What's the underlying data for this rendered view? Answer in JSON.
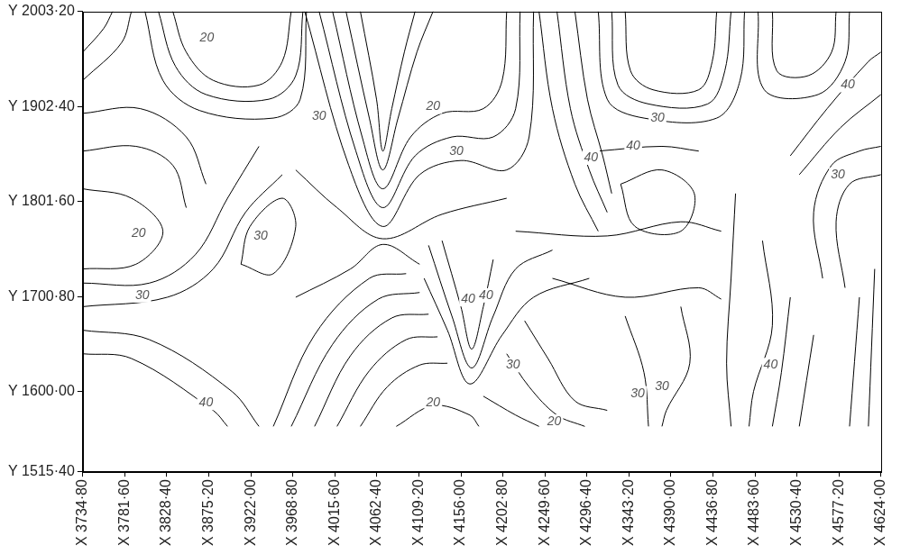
{
  "chart_data": {
    "type": "contour",
    "color": "#000000",
    "grid": false,
    "xlim": [
      3734.8,
      4624.0
    ],
    "ylim": [
      1515.4,
      2003.2
    ],
    "xticks": [
      {
        "value": 3734.8,
        "label": "X 3734·80"
      },
      {
        "value": 3781.6,
        "label": "X 3781·60"
      },
      {
        "value": 3828.4,
        "label": "X 3828·40"
      },
      {
        "value": 3875.2,
        "label": "X 3875·20"
      },
      {
        "value": 3922.0,
        "label": "X 3922·00"
      },
      {
        "value": 3968.8,
        "label": "X 3968·80"
      },
      {
        "value": 4015.6,
        "label": "X 4015·60"
      },
      {
        "value": 4062.4,
        "label": "X 4062·40"
      },
      {
        "value": 4109.2,
        "label": "X 4109·20"
      },
      {
        "value": 4156.0,
        "label": "X 4156·00"
      },
      {
        "value": 4202.8,
        "label": "X 4202·80"
      },
      {
        "value": 4249.6,
        "label": "X 4249·60"
      },
      {
        "value": 4296.4,
        "label": "X 4296·40"
      },
      {
        "value": 4343.2,
        "label": "X 4343·20"
      },
      {
        "value": 4390.0,
        "label": "X 4390·00"
      },
      {
        "value": 4436.8,
        "label": "X 4436·80"
      },
      {
        "value": 4483.6,
        "label": "X 4483·60"
      },
      {
        "value": 4530.4,
        "label": "X 4530·40"
      },
      {
        "value": 4577.2,
        "label": "X 4577·20"
      },
      {
        "value": 4624.0,
        "label": "X 4624·00"
      }
    ],
    "yticks": [
      {
        "value": 1515.4,
        "label": "Y 1515·40"
      },
      {
        "value": 1600.0,
        "label": "Y 1600·00"
      },
      {
        "value": 1700.8,
        "label": "Y 1700·80"
      },
      {
        "value": 1801.6,
        "label": "Y 1801·60"
      },
      {
        "value": 1902.4,
        "label": "Y 1902·40"
      },
      {
        "value": 2003.2,
        "label": "Y 2003·20"
      }
    ],
    "contours": [
      [
        [
          3734.8,
          1960
        ],
        [
          3758,
          1985
        ],
        [
          3768,
          2003.2
        ]
      ],
      [
        [
          3734.8,
          1930
        ],
        [
          3778,
          1970
        ],
        [
          3789,
          2003.2
        ]
      ],
      [
        [
          3835,
          2003.2
        ],
        [
          3850,
          1960
        ],
        [
          3880,
          1930
        ],
        [
          3931,
          1925
        ],
        [
          3957,
          1950
        ],
        [
          3967,
          2003.2
        ]
      ],
      [
        [
          3819,
          2003.2
        ],
        [
          3838,
          1945
        ],
        [
          3872,
          1915
        ],
        [
          3942,
          1910
        ],
        [
          3972,
          1935
        ],
        [
          3980,
          2003.2
        ]
      ],
      [
        [
          3804,
          2003.2
        ],
        [
          3824,
          1930
        ],
        [
          3865,
          1898
        ],
        [
          3947,
          1890
        ],
        [
          3977,
          1910
        ],
        [
          3984,
          2003.2
        ]
      ],
      [
        [
          3734.8,
          1895
        ],
        [
          3799,
          1900
        ],
        [
          3850,
          1870
        ],
        [
          3872,
          1820
        ]
      ],
      [
        [
          3734.8,
          1855
        ],
        [
          3794,
          1860
        ],
        [
          3835,
          1840
        ],
        [
          3850,
          1795
        ]
      ],
      [
        [
          4044,
          2003.2
        ],
        [
          4062,
          1910
        ],
        [
          4069,
          1855
        ],
        [
          4079,
          1900
        ],
        [
          4093,
          1960
        ],
        [
          4105,
          2003.2
        ]
      ],
      [
        [
          4028,
          2003.2
        ],
        [
          4054,
          1890
        ],
        [
          4069,
          1835
        ],
        [
          4086,
          1890
        ],
        [
          4107,
          1960
        ],
        [
          4125,
          2003.2
        ]
      ],
      [
        [
          4013,
          2003.2
        ],
        [
          4046,
          1870
        ],
        [
          4069,
          1815
        ],
        [
          4100,
          1870
        ],
        [
          4135,
          1895
        ],
        [
          4181,
          1900
        ],
        [
          4202,
          1930
        ],
        [
          4207,
          2003.2
        ]
      ],
      [
        [
          3998,
          2003.2
        ],
        [
          4039,
          1855
        ],
        [
          4069,
          1795
        ],
        [
          4105,
          1850
        ],
        [
          4146,
          1870
        ],
        [
          4192,
          1870
        ],
        [
          4217,
          1900
        ],
        [
          4222,
          2003.2
        ]
      ],
      [
        [
          3982,
          2003.2
        ],
        [
          4031,
          1840
        ],
        [
          4069,
          1775
        ],
        [
          4110,
          1830
        ],
        [
          4156,
          1845
        ],
        [
          4207,
          1835
        ],
        [
          4232,
          1870
        ],
        [
          4237,
          2003.2
        ]
      ],
      [
        [
          4339,
          2003.2
        ],
        [
          4345,
          1940
        ],
        [
          4370,
          1920
        ],
        [
          4421,
          1920
        ],
        [
          4436,
          1950
        ],
        [
          4441,
          2003.2
        ]
      ],
      [
        [
          4324,
          2003.2
        ],
        [
          4331,
          1925
        ],
        [
          4365,
          1905
        ],
        [
          4431,
          1905
        ],
        [
          4450,
          1940
        ],
        [
          4457,
          2003.2
        ]
      ],
      [
        [
          4309,
          2003.2
        ],
        [
          4319,
          1910
        ],
        [
          4360,
          1890
        ],
        [
          4441,
          1890
        ],
        [
          4467,
          1930
        ],
        [
          4472,
          2003.2
        ]
      ],
      [
        [
          4243,
          2003.2
        ],
        [
          4258,
          1900
        ],
        [
          4283,
          1820
        ],
        [
          4309,
          1770
        ]
      ],
      [
        [
          4263,
          2003.2
        ],
        [
          4278,
          1900
        ],
        [
          4299,
          1835
        ],
        [
          4319,
          1790
        ]
      ],
      [
        [
          4283,
          2003.2
        ],
        [
          4297,
          1910
        ],
        [
          4314,
          1850
        ],
        [
          4324,
          1810
        ]
      ],
      [
        [
          4309,
          1855
        ],
        [
          4380,
          1860
        ],
        [
          4421,
          1855
        ]
      ],
      [
        [
          4503,
          2003.2
        ],
        [
          4508,
          1940
        ],
        [
          4543,
          1935
        ],
        [
          4569,
          1960
        ],
        [
          4574,
          2003.2
        ]
      ],
      [
        [
          4487,
          2003.2
        ],
        [
          4494,
          1920
        ],
        [
          4554,
          1915
        ],
        [
          4584,
          1950
        ],
        [
          4589,
          2003.2
        ]
      ],
      [
        [
          4523,
          1850
        ],
        [
          4564,
          1900
        ],
        [
          4610,
          1950
        ],
        [
          4624,
          1960
        ]
      ],
      [
        [
          4533,
          1830
        ],
        [
          4579,
          1880
        ],
        [
          4624,
          1915
        ]
      ],
      [
        [
          4559,
          1720
        ],
        [
          4549,
          1790
        ],
        [
          4569,
          1840
        ],
        [
          4600,
          1855
        ],
        [
          4624,
          1860
        ]
      ],
      [
        [
          4584,
          1710
        ],
        [
          4574,
          1780
        ],
        [
          4589,
          1820
        ],
        [
          4624,
          1830
        ]
      ],
      [
        [
          4334,
          1820
        ],
        [
          4380,
          1835
        ],
        [
          4416,
          1810
        ],
        [
          4401,
          1770
        ],
        [
          4350,
          1775
        ],
        [
          4334,
          1820
        ]
      ],
      [
        [
          4217,
          1770
        ],
        [
          4319,
          1765
        ],
        [
          4401,
          1780
        ],
        [
          4446,
          1770
        ]
      ],
      [
        [
          4258,
          1720
        ],
        [
          4339,
          1700
        ],
        [
          4421,
          1710
        ],
        [
          4446,
          1698
        ]
      ],
      [
        [
          3734.8,
          1815
        ],
        [
          3789,
          1805
        ],
        [
          3824,
          1770
        ],
        [
          3794,
          1735
        ],
        [
          3734.8,
          1730
        ]
      ],
      [
        [
          3734.8,
          1715
        ],
        [
          3809,
          1715
        ],
        [
          3860,
          1745
        ],
        [
          3896,
          1805
        ],
        [
          3931,
          1860
        ]
      ],
      [
        [
          3734.8,
          1690
        ],
        [
          3829,
          1700
        ],
        [
          3880,
          1730
        ],
        [
          3916,
          1790
        ],
        [
          3957,
          1830
        ]
      ],
      [
        [
          3911,
          1735
        ],
        [
          3921,
          1775
        ],
        [
          3957,
          1805
        ],
        [
          3972,
          1775
        ],
        [
          3947,
          1725
        ],
        [
          3911,
          1735
        ]
      ],
      [
        [
          3972,
          1835
        ],
        [
          4018,
          1795
        ],
        [
          4069,
          1762
        ],
        [
          4135,
          1788
        ],
        [
          4207,
          1805
        ]
      ],
      [
        [
          3972,
          1700
        ],
        [
          4033,
          1730
        ],
        [
          4069,
          1756
        ],
        [
          4110,
          1735
        ]
      ],
      [
        [
          4135,
          1760
        ],
        [
          4156,
          1690
        ],
        [
          4168,
          1645
        ],
        [
          4181,
          1690
        ],
        [
          4192,
          1740
        ]
      ],
      [
        [
          4120,
          1755
        ],
        [
          4146,
          1680
        ],
        [
          4168,
          1625
        ],
        [
          4192,
          1680
        ],
        [
          4217,
          1730
        ],
        [
          4258,
          1750
        ]
      ],
      [
        [
          4115,
          1720
        ],
        [
          4141,
          1665
        ],
        [
          4166,
          1608
        ],
        [
          4202,
          1660
        ],
        [
          4237,
          1700
        ],
        [
          4299,
          1720
        ]
      ],
      [
        [
          3734.8,
          1665
        ],
        [
          3809,
          1655
        ],
        [
          3901,
          1600
        ],
        [
          3931,
          1563
        ]
      ],
      [
        [
          3734.8,
          1640
        ],
        [
          3789,
          1635
        ],
        [
          3880,
          1580
        ],
        [
          3896,
          1563
        ]
      ],
      [
        [
          3947,
          1563
        ],
        [
          3993,
          1660
        ],
        [
          4054,
          1720
        ],
        [
          4095,
          1725
        ]
      ],
      [
        [
          3967,
          1563
        ],
        [
          4013,
          1650
        ],
        [
          4064,
          1698
        ],
        [
          4110,
          1705
        ]
      ],
      [
        [
          3993,
          1563
        ],
        [
          4033,
          1638
        ],
        [
          4079,
          1678
        ],
        [
          4120,
          1682
        ]
      ],
      [
        [
          4018,
          1563
        ],
        [
          4054,
          1622
        ],
        [
          4095,
          1655
        ],
        [
          4130,
          1658
        ]
      ],
      [
        [
          4044,
          1563
        ],
        [
          4074,
          1605
        ],
        [
          4110,
          1628
        ],
        [
          4141,
          1630
        ]
      ],
      [
        [
          4227,
          1675
        ],
        [
          4253,
          1635
        ],
        [
          4283,
          1590
        ],
        [
          4319,
          1580
        ]
      ],
      [
        [
          4207,
          1640
        ],
        [
          4232,
          1605
        ],
        [
          4263,
          1575
        ],
        [
          4294,
          1563
        ]
      ],
      [
        [
          4181,
          1595
        ],
        [
          4217,
          1575
        ],
        [
          4243,
          1563
        ]
      ],
      [
        [
          4084,
          1563
        ],
        [
          4125,
          1585
        ],
        [
          4166,
          1575
        ],
        [
          4176,
          1563
        ]
      ],
      [
        [
          4339,
          1680
        ],
        [
          4360,
          1620
        ],
        [
          4365,
          1563
        ]
      ],
      [
        [
          4401,
          1690
        ],
        [
          4411,
          1630
        ],
        [
          4385,
          1580
        ],
        [
          4380,
          1563
        ]
      ],
      [
        [
          4462,
          1810
        ],
        [
          4457,
          1720
        ],
        [
          4452,
          1630
        ],
        [
          4457,
          1563
        ]
      ],
      [
        [
          4492,
          1760
        ],
        [
          4503,
          1670
        ],
        [
          4482,
          1600
        ],
        [
          4477,
          1563
        ]
      ],
      [
        [
          4523,
          1700
        ],
        [
          4513,
          1620
        ],
        [
          4503,
          1563
        ]
      ],
      [
        [
          4549,
          1660
        ],
        [
          4533,
          1563
        ]
      ],
      [
        [
          4600,
          1700
        ],
        [
          4589,
          1563
        ]
      ],
      [
        [
          4617,
          1730
        ],
        [
          4610,
          1563
        ]
      ]
    ],
    "annotations": [
      {
        "text": "20",
        "x": 3873,
        "y": 1975
      },
      {
        "text": "20",
        "x": 4125,
        "y": 1902
      },
      {
        "text": "30",
        "x": 3998,
        "y": 1892
      },
      {
        "text": "30",
        "x": 4151,
        "y": 1855
      },
      {
        "text": "30",
        "x": 4375,
        "y": 1890
      },
      {
        "text": "40",
        "x": 4587,
        "y": 1925
      },
      {
        "text": "40",
        "x": 4348,
        "y": 1860
      },
      {
        "text": "40",
        "x": 4301,
        "y": 1848
      },
      {
        "text": "30",
        "x": 4576,
        "y": 1830
      },
      {
        "text": "20",
        "x": 3797,
        "y": 1768
      },
      {
        "text": "30",
        "x": 3933,
        "y": 1765
      },
      {
        "text": "30",
        "x": 3801,
        "y": 1702
      },
      {
        "text": "40",
        "x": 4164,
        "y": 1698
      },
      {
        "text": "40",
        "x": 4184,
        "y": 1702
      },
      {
        "text": "30",
        "x": 4214,
        "y": 1628
      },
      {
        "text": "40",
        "x": 4501,
        "y": 1628
      },
      {
        "text": "40",
        "x": 3872,
        "y": 1588
      },
      {
        "text": "20",
        "x": 4125,
        "y": 1588
      },
      {
        "text": "20",
        "x": 4260,
        "y": 1568
      },
      {
        "text": "30",
        "x": 4353,
        "y": 1598
      },
      {
        "text": "30",
        "x": 4380,
        "y": 1605
      }
    ]
  }
}
